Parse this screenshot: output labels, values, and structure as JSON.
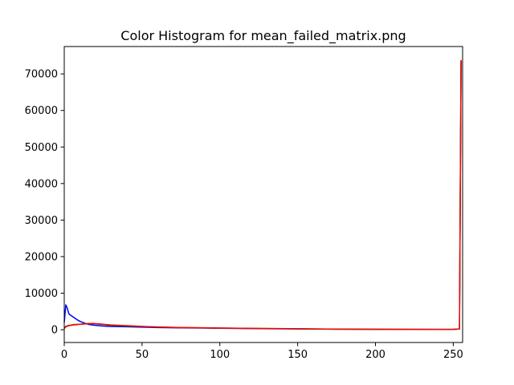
{
  "chart_data": {
    "type": "line",
    "title": "Color Histogram for mean_failed_matrix.png",
    "xlabel": "",
    "ylabel": "",
    "xlim": [
      0,
      256
    ],
    "ylim": [
      -3500,
      77500
    ],
    "xticks": [
      0,
      50,
      100,
      150,
      200,
      250
    ],
    "yticks": [
      0,
      10000,
      20000,
      30000,
      40000,
      50000,
      60000,
      70000
    ],
    "grid": false,
    "legend": "none",
    "series": [
      {
        "color": "#0000ff",
        "points": [
          [
            0,
            2000
          ],
          [
            1,
            6800
          ],
          [
            2,
            5800
          ],
          [
            3,
            4300
          ],
          [
            5,
            3700
          ],
          [
            8,
            2800
          ],
          [
            10,
            2300
          ],
          [
            13,
            1800
          ],
          [
            16,
            1400
          ],
          [
            20,
            1200
          ],
          [
            25,
            1000
          ],
          [
            30,
            900
          ],
          [
            40,
            800
          ],
          [
            50,
            700
          ],
          [
            60,
            600
          ],
          [
            75,
            500
          ],
          [
            100,
            400
          ],
          [
            125,
            300
          ],
          [
            150,
            200
          ],
          [
            175,
            150
          ],
          [
            200,
            100
          ],
          [
            225,
            100
          ],
          [
            240,
            100
          ],
          [
            250,
            100
          ],
          [
            254,
            200
          ],
          [
            255,
            73500
          ]
        ]
      },
      {
        "color": "#008000",
        "points": [
          [
            0,
            500
          ],
          [
            1,
            900
          ],
          [
            3,
            1200
          ],
          [
            6,
            1400
          ],
          [
            10,
            1500
          ],
          [
            15,
            1700
          ],
          [
            20,
            1600
          ],
          [
            25,
            1400
          ],
          [
            30,
            1200
          ],
          [
            40,
            1000
          ],
          [
            50,
            900
          ],
          [
            60,
            700
          ],
          [
            75,
            600
          ],
          [
            100,
            450
          ],
          [
            125,
            350
          ],
          [
            150,
            250
          ],
          [
            175,
            150
          ],
          [
            200,
            120
          ],
          [
            225,
            100
          ],
          [
            240,
            100
          ],
          [
            250,
            100
          ],
          [
            254,
            200
          ],
          [
            255,
            73500
          ]
        ]
      },
      {
        "color": "#ff0000",
        "points": [
          [
            0,
            300
          ],
          [
            1,
            800
          ],
          [
            3,
            1100
          ],
          [
            6,
            1300
          ],
          [
            10,
            1500
          ],
          [
            15,
            1600
          ],
          [
            18,
            1700
          ],
          [
            22,
            1600
          ],
          [
            25,
            1500
          ],
          [
            30,
            1300
          ],
          [
            40,
            1100
          ],
          [
            50,
            900
          ],
          [
            60,
            750
          ],
          [
            75,
            600
          ],
          [
            100,
            450
          ],
          [
            125,
            350
          ],
          [
            150,
            250
          ],
          [
            175,
            150
          ],
          [
            200,
            120
          ],
          [
            225,
            100
          ],
          [
            240,
            80
          ],
          [
            250,
            100
          ],
          [
            254,
            200
          ],
          [
            255,
            73800
          ]
        ]
      }
    ]
  }
}
